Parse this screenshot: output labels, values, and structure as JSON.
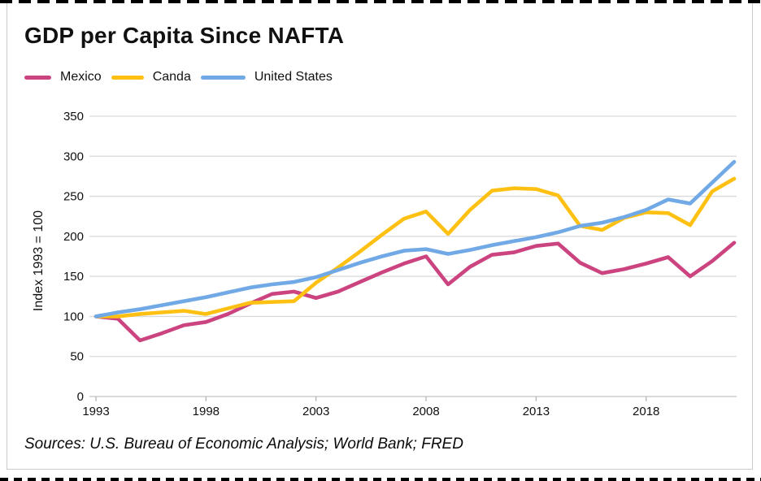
{
  "title": "GDP per Capita Since NAFTA",
  "source_note": "Sources: U.S. Bureau of Economic Analysis; World Bank; FRED",
  "colors": {
    "background": "#ffffff",
    "card_border": "#cbcbcb",
    "grid_line": "#d9d9d9",
    "axis_line": "#c2c2c2",
    "tick_mark": "#b5b5b5",
    "text": "#111111",
    "selection_dashes": "#000000"
  },
  "chart_data": {
    "type": "line",
    "title": "GDP per Capita Since NAFTA",
    "xlabel": "",
    "ylabel": "Index 1993 = 100",
    "grid": true,
    "legend_position": "top-left",
    "xlim": [
      1993,
      2022
    ],
    "ylim": [
      0,
      350
    ],
    "yticks": [
      0,
      50,
      100,
      150,
      200,
      250,
      300,
      350
    ],
    "xticks": [
      1993,
      1998,
      2003,
      2008,
      2013,
      2018
    ],
    "x": [
      1993,
      1994,
      1995,
      1996,
      1997,
      1998,
      1999,
      2000,
      2001,
      2002,
      2003,
      2004,
      2005,
      2006,
      2007,
      2008,
      2009,
      2010,
      2011,
      2012,
      2013,
      2014,
      2015,
      2016,
      2017,
      2018,
      2019,
      2020,
      2021,
      2022
    ],
    "series": [
      {
        "name": "Mexico",
        "color": "#cb4480",
        "values": [
          100,
          97,
          70,
          79,
          89,
          93,
          103,
          116,
          128,
          131,
          123,
          131,
          143,
          155,
          166,
          175,
          140,
          162,
          177,
          180,
          188,
          191,
          167,
          154,
          159,
          166,
          174,
          150,
          169,
          192
        ]
      },
      {
        "name": "Canda",
        "color": "#fec113",
        "values": [
          100,
          100,
          103,
          105,
          107,
          103,
          110,
          117,
          118,
          119,
          142,
          161,
          181,
          202,
          222,
          231,
          203,
          233,
          257,
          260,
          259,
          251,
          213,
          208,
          223,
          230,
          229,
          214,
          256,
          272
        ]
      },
      {
        "name": "United States",
        "color": "#70a9e5",
        "values": [
          100,
          105,
          109,
          114,
          119,
          124,
          130,
          136,
          140,
          143,
          149,
          158,
          167,
          175,
          182,
          184,
          178,
          183,
          189,
          194,
          199,
          205,
          213,
          217,
          224,
          233,
          246,
          241,
          267,
          293
        ]
      }
    ]
  }
}
